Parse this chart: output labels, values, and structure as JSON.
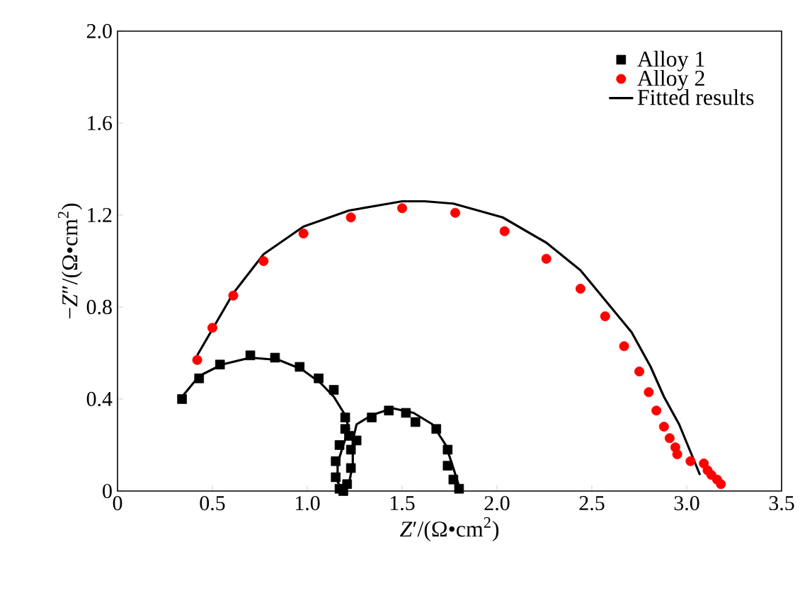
{
  "chart_data": {
    "type": "scatter",
    "xlabel": "*Z*′/(Ω•cm$^{2}$)",
    "ylabel": "−*Z*″/(Ω•cm$^{2}$)",
    "xlim": [
      0,
      3.5
    ],
    "ylim": [
      0,
      2.0
    ],
    "xticks": [
      0,
      0.5,
      {
        "value": 1,
        "label": "1.0"
      },
      1.5,
      {
        "value": 2,
        "label": "2.0"
      },
      2.5,
      {
        "value": 3,
        "label": "3.0"
      },
      3.5
    ],
    "yticks": [
      0,
      0.4,
      0.8,
      1.2,
      1.6,
      {
        "value": 2,
        "label": "2.0"
      }
    ],
    "grid": false,
    "legend": "top right",
    "series": [
      {
        "name": "Alloy 1",
        "marker": "square",
        "color": "#000000",
        "x": [
          0.34,
          0.43,
          0.54,
          0.7,
          0.83,
          0.96,
          1.06,
          1.14,
          1.2,
          1.2,
          1.17,
          1.15,
          1.15,
          1.17,
          1.19,
          1.21,
          1.23,
          1.23,
          1.22,
          1.26,
          1.34,
          1.43,
          1.52,
          1.57,
          1.68,
          1.74,
          1.74,
          1.77,
          1.8
        ],
        "values": [
          0.4,
          0.49,
          0.55,
          0.59,
          0.58,
          0.54,
          0.49,
          0.44,
          0.32,
          0.27,
          0.2,
          0.13,
          0.06,
          0.01,
          0.0,
          0.03,
          0.1,
          0.18,
          0.24,
          0.22,
          0.32,
          0.35,
          0.34,
          0.3,
          0.27,
          0.18,
          0.11,
          0.05,
          0.01
        ]
      },
      {
        "name": "Alloy 2",
        "marker": "circle",
        "color": "#ff0000",
        "x": [
          0.42,
          0.5,
          0.61,
          0.77,
          0.98,
          1.23,
          1.5,
          1.78,
          2.04,
          2.26,
          2.44,
          2.57,
          2.67,
          2.75,
          2.8,
          2.84,
          2.88,
          2.91,
          2.94,
          2.95,
          3.02,
          3.09,
          3.11,
          3.13,
          3.16,
          3.18
        ],
        "values": [
          0.57,
          0.71,
          0.85,
          1.0,
          1.12,
          1.19,
          1.23,
          1.21,
          1.13,
          1.01,
          0.88,
          0.76,
          0.63,
          0.52,
          0.43,
          0.35,
          0.28,
          0.23,
          0.19,
          0.16,
          0.13,
          0.12,
          0.09,
          0.07,
          0.05,
          0.03
        ]
      },
      {
        "name": "Fitted results",
        "type": "line",
        "marker": "none",
        "color": "#000000",
        "x": [
          0.42,
          0.61,
          0.77,
          0.98,
          1.22,
          1.5,
          1.62,
          1.77,
          2.03,
          2.26,
          2.44,
          2.58,
          2.71,
          2.81,
          2.88,
          2.96,
          3.02,
          3.07
        ],
        "values": [
          0.59,
          0.86,
          1.03,
          1.15,
          1.22,
          1.26,
          1.26,
          1.25,
          1.19,
          1.08,
          0.96,
          0.82,
          0.69,
          0.54,
          0.41,
          0.29,
          0.17,
          0.07
        ]
      },
      {
        "type": "line",
        "marker": "none",
        "color": "#000000",
        "x": [
          0.34,
          0.43,
          0.55,
          0.7,
          0.85,
          0.97,
          1.07,
          1.14,
          1.2,
          1.22,
          1.19,
          1.16,
          1.16,
          1.19,
          1.22,
          1.24,
          1.24,
          1.26,
          1.34,
          1.45,
          1.56,
          1.66,
          1.73,
          1.77,
          1.8
        ],
        "values": [
          0.41,
          0.5,
          0.55,
          0.58,
          0.57,
          0.53,
          0.47,
          0.41,
          0.33,
          0.27,
          0.2,
          0.12,
          0.04,
          0.0,
          0.03,
          0.12,
          0.22,
          0.29,
          0.33,
          0.36,
          0.34,
          0.29,
          0.2,
          0.1,
          0.02
        ]
      }
    ]
  }
}
